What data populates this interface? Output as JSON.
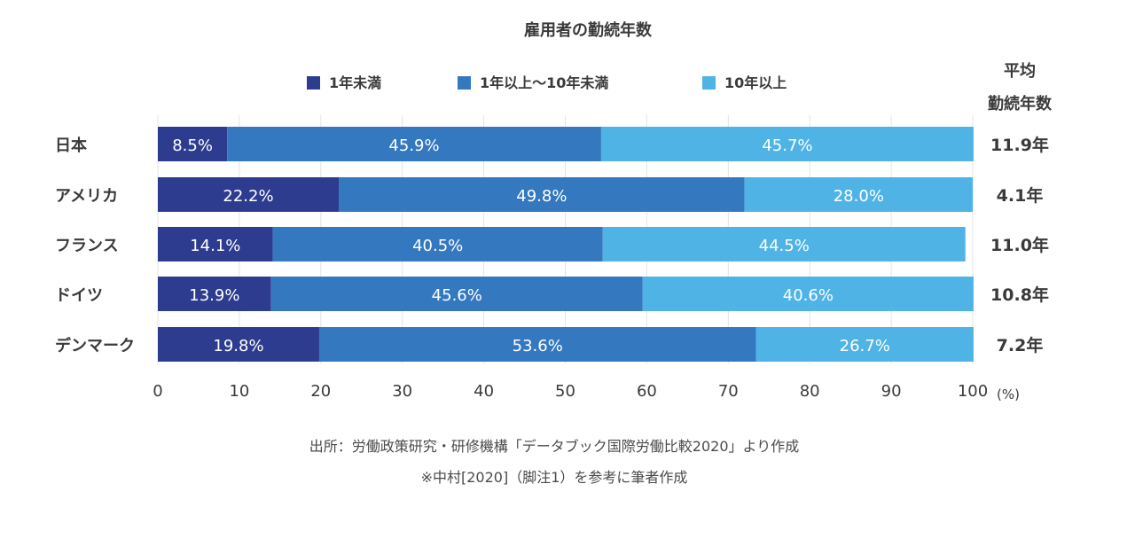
{
  "chart_data": {
    "type": "bar",
    "orientation": "horizontal",
    "stacked": true,
    "title": "雇用者の勤続年数",
    "categories": [
      "日本",
      "アメリカ",
      "フランス",
      "ドイツ",
      "デンマーク"
    ],
    "series": [
      {
        "name": "1年未満",
        "color": "#2e3c8f",
        "values": [
          8.5,
          22.2,
          14.1,
          13.9,
          19.8
        ],
        "labels": [
          "8.5%",
          "22.2%",
          "14.1%",
          "13.9%",
          "19.8%"
        ]
      },
      {
        "name": "1年以上〜10年未満",
        "color": "#3478c0",
        "values": [
          45.9,
          49.8,
          40.5,
          45.6,
          53.6
        ],
        "labels": [
          "45.9%",
          "49.8%",
          "40.5%",
          "45.6%",
          "53.6%"
        ]
      },
      {
        "name": "10年以上",
        "color": "#4fb3e6",
        "values": [
          45.7,
          28.0,
          44.5,
          40.6,
          26.7
        ],
        "labels": [
          "45.7%",
          "28.0%",
          "44.5%",
          "40.6%",
          "26.7%"
        ]
      }
    ],
    "average_header": [
      "平均",
      "勤続年数"
    ],
    "averages": [
      "11.9年",
      "4.1年",
      "11.0年",
      "10.8年",
      "7.2年"
    ],
    "xlim": [
      0,
      100
    ],
    "xticks": [
      "0",
      "10",
      "20",
      "30",
      "40",
      "50",
      "60",
      "70",
      "80",
      "90",
      "100"
    ],
    "xunit": "(%)",
    "grid": true,
    "legend_position": "top",
    "notes": [
      "出所：労働政策研究・研修機構「データブック国際労働比較2020」より作成",
      "※中村[2020]（脚注1）を参考に筆者作成"
    ]
  }
}
